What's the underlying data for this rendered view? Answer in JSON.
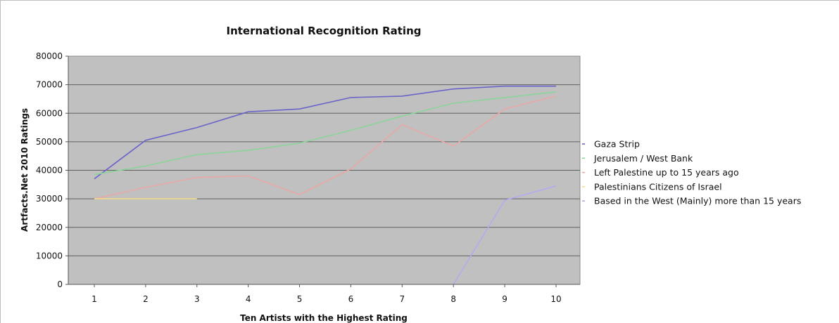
{
  "chart_data": {
    "type": "line",
    "title": "International Recognition Rating",
    "xlabel": "Ten Artists with the Highest Rating",
    "ylabel": "Artfacts.Net 2010 Ratings",
    "categories": [
      "1",
      "2",
      "3",
      "4",
      "5",
      "6",
      "7",
      "8",
      "9",
      "10"
    ],
    "ylim": [
      0,
      80000
    ],
    "yticks": [
      0,
      10000,
      20000,
      30000,
      40000,
      50000,
      60000,
      70000,
      80000
    ],
    "y_tick_labels": [
      "0",
      "10000",
      "20000",
      "30000",
      "40000",
      "50000",
      "60000",
      "70000",
      "80000"
    ],
    "grid": true,
    "legend_position": "right",
    "plot_background": "#c0c0c0",
    "series": [
      {
        "name": "Gaza Strip",
        "color": "#6a64c8",
        "values": [
          37000,
          50500,
          55000,
          60500,
          61500,
          65500,
          66000,
          68500,
          69500,
          69500
        ]
      },
      {
        "name": "Jerusalem / West Bank",
        "color": "#8cd49a",
        "values": [
          38500,
          41500,
          45500,
          47000,
          49500,
          54000,
          59000,
          63500,
          65500,
          67500
        ]
      },
      {
        "name": "Left Palestine up to 15 years ago",
        "color": "#e8a8a8",
        "values": [
          30000,
          34000,
          37500,
          38000,
          31500,
          40500,
          56000,
          48500,
          61500,
          66000
        ]
      },
      {
        "name": "Palestinians Citizens of Israel",
        "color": "#f2dc8c",
        "values": [
          30000,
          30000,
          30000,
          null,
          null,
          null,
          null,
          null,
          null,
          null
        ]
      },
      {
        "name": "Based in the West (Mainly) more than 15 years",
        "color": "#b8a8ee",
        "values": [
          null,
          null,
          null,
          null,
          null,
          null,
          null,
          0,
          29500,
          34500
        ]
      }
    ]
  }
}
